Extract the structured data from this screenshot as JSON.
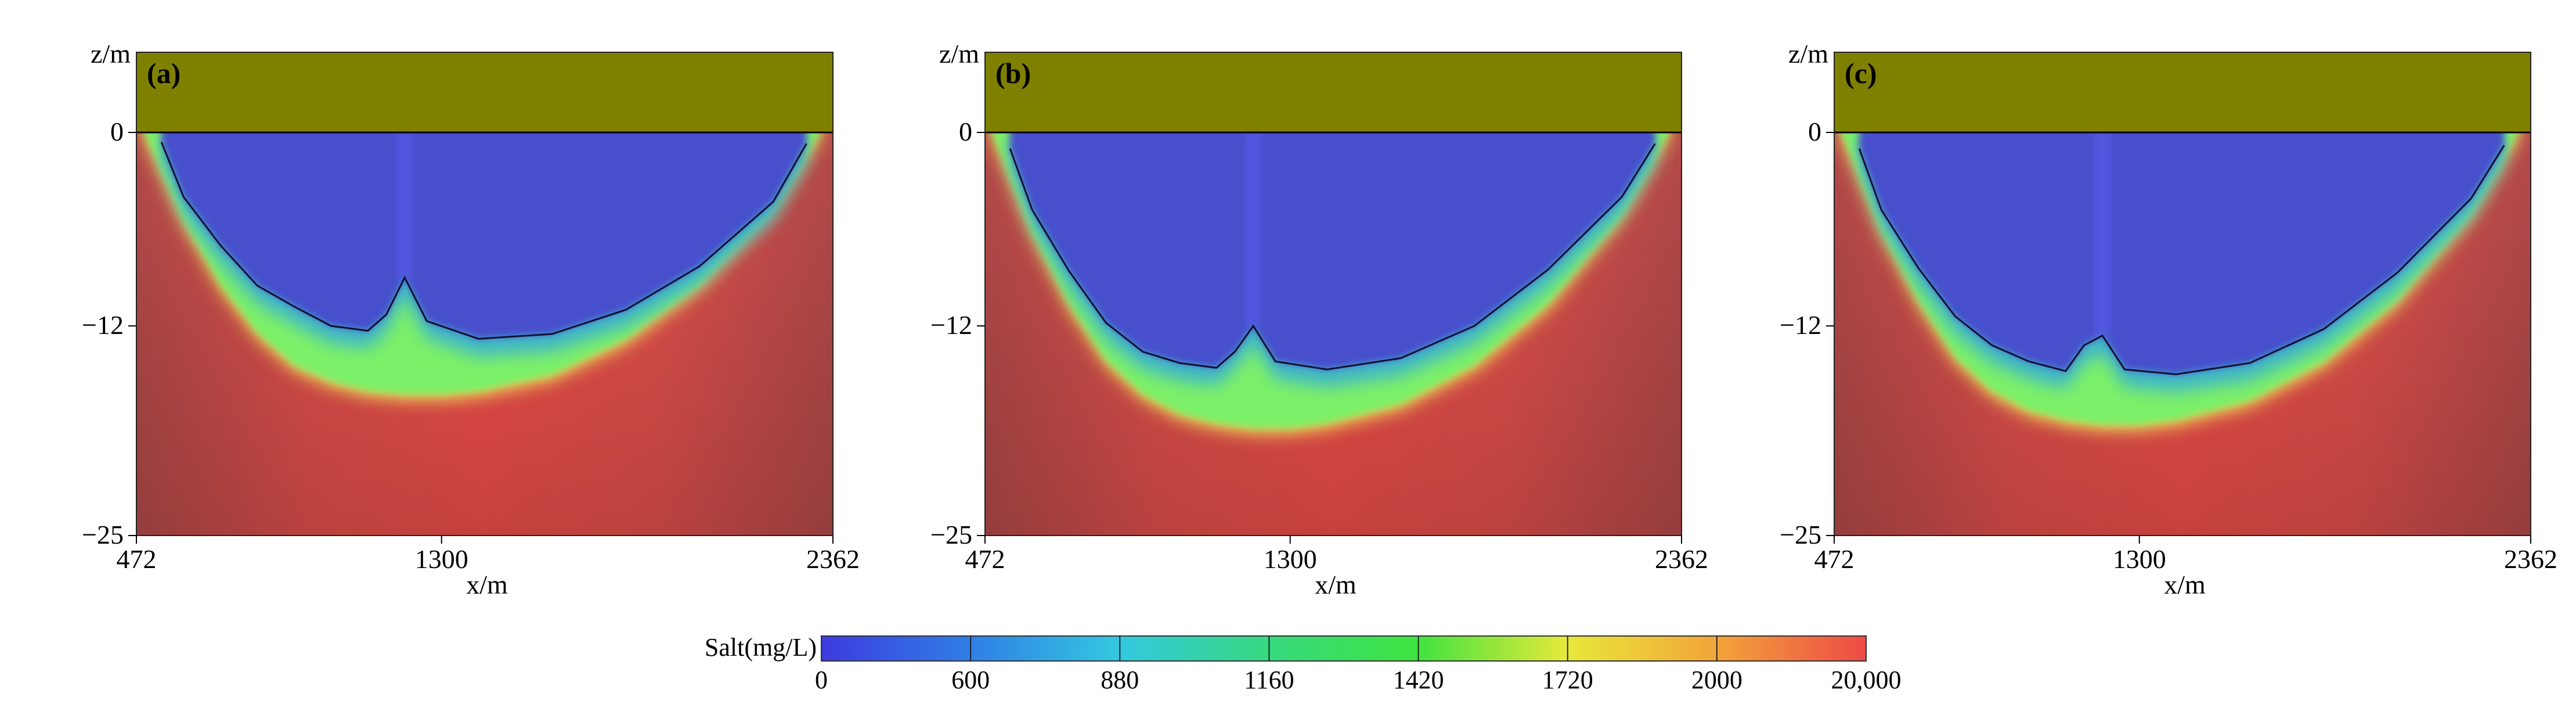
{
  "figure": {
    "panels": [
      {
        "label": "(a)",
        "z_axis_label": "z/m",
        "x_axis_label": "x/m",
        "z_ticks": [
          "0",
          "−12",
          "−25"
        ],
        "x_ticks": [
          "472",
          "1300",
          "2362"
        ]
      },
      {
        "label": "(b)",
        "z_axis_label": "z/m",
        "x_axis_label": "x/m",
        "z_ticks": [
          "0",
          "−12",
          "−25"
        ],
        "x_ticks": [
          "472",
          "1300",
          "2362"
        ]
      },
      {
        "label": "(c)",
        "z_axis_label": "z/m",
        "x_axis_label": "x/m",
        "z_ticks": [
          "0",
          "−12",
          "−25"
        ],
        "x_ticks": [
          "472",
          "1300",
          "2362"
        ]
      }
    ],
    "colorbar": {
      "label": "Salt(mg/L)",
      "ticks": [
        "0",
        "600",
        "880",
        "1160",
        "1420",
        "1720",
        "2000",
        "20,000"
      ],
      "colors": [
        "#3d3ae0",
        "#2f7fe6",
        "#33c9e0",
        "#36d97e",
        "#3fe43f",
        "#e8e83a",
        "#f2a43a",
        "#ee4a46"
      ]
    },
    "colors": {
      "top_layer": "#808000",
      "saline": "#f04b48",
      "fresh": "#4650cc",
      "transition": "#7cf068"
    }
  },
  "chart_data": [
    {
      "type": "heatmap",
      "title": "(a)",
      "xlabel": "x/m",
      "ylabel": "z/m",
      "xlim": [
        472,
        2362
      ],
      "ylim": [
        -25,
        0
      ],
      "colorbar_label": "Salt(mg/L)",
      "colorbar_ticks": [
        0,
        600,
        880,
        1160,
        1420,
        1720,
        2000,
        20000
      ],
      "fresh_lens_boundary": {
        "x": [
          540,
          600,
          700,
          800,
          900,
          1000,
          1100,
          1150,
          1200,
          1260,
          1400,
          1600,
          1800,
          2000,
          2200,
          2290
        ],
        "z": [
          -0.6,
          -4.0,
          -7.0,
          -9.5,
          -10.8,
          -12.0,
          -12.3,
          -11.3,
          -9.0,
          -11.7,
          -12.8,
          -12.5,
          -11.0,
          -8.3,
          -4.3,
          -0.7
        ]
      },
      "mixing_zone_base": {
        "x": [
          490,
          600,
          700,
          800,
          900,
          1000,
          1100,
          1200,
          1300,
          1400,
          1600,
          1800,
          2000,
          2200,
          2330
        ],
        "z": [
          -0.2,
          -5.8,
          -9.8,
          -12.8,
          -14.8,
          -15.8,
          -16.4,
          -16.6,
          -16.6,
          -16.4,
          -15.4,
          -13.2,
          -9.8,
          -5.0,
          -0.3
        ]
      }
    },
    {
      "type": "heatmap",
      "title": "(b)",
      "xlabel": "x/m",
      "ylabel": "z/m",
      "xlim": [
        472,
        2362
      ],
      "ylim": [
        -25,
        0
      ],
      "colorbar_label": "Salt(mg/L)",
      "colorbar_ticks": [
        0,
        600,
        880,
        1160,
        1420,
        1720,
        2000,
        20000
      ],
      "fresh_lens_boundary": {
        "x": [
          540,
          600,
          700,
          800,
          900,
          1000,
          1100,
          1150,
          1200,
          1260,
          1400,
          1600,
          1800,
          2000,
          2200,
          2290
        ],
        "z": [
          -1.0,
          -4.8,
          -8.6,
          -11.8,
          -13.6,
          -14.3,
          -14.6,
          -13.6,
          -12.0,
          -14.2,
          -14.7,
          -14.0,
          -12.0,
          -8.5,
          -4.0,
          -0.7
        ]
      },
      "mixing_zone_base": {
        "x": [
          490,
          600,
          700,
          800,
          900,
          1000,
          1100,
          1200,
          1300,
          1400,
          1600,
          1800,
          2000,
          2200,
          2330
        ],
        "z": [
          -0.3,
          -6.5,
          -11.0,
          -14.5,
          -16.6,
          -17.8,
          -18.4,
          -18.7,
          -18.7,
          -18.4,
          -17.2,
          -14.8,
          -11.0,
          -5.5,
          -0.3
        ]
      }
    },
    {
      "type": "heatmap",
      "title": "(c)",
      "xlabel": "x/m",
      "ylabel": "z/m",
      "xlim": [
        472,
        2362
      ],
      "ylim": [
        -25,
        0
      ],
      "colorbar_label": "Salt(mg/L)",
      "colorbar_ticks": [
        0,
        600,
        880,
        1160,
        1420,
        1720,
        2000,
        20000
      ],
      "fresh_lens_boundary": {
        "x": [
          540,
          600,
          700,
          800,
          900,
          1000,
          1100,
          1150,
          1200,
          1260,
          1400,
          1600,
          1800,
          2000,
          2200,
          2290
        ],
        "z": [
          -1.0,
          -4.8,
          -8.4,
          -11.4,
          -13.2,
          -14.2,
          -14.8,
          -13.2,
          -12.6,
          -14.7,
          -15.0,
          -14.3,
          -12.2,
          -8.7,
          -4.1,
          -0.8
        ]
      },
      "mixing_zone_base": {
        "x": [
          490,
          600,
          700,
          800,
          900,
          1000,
          1100,
          1200,
          1300,
          1400,
          1600,
          1800,
          2000,
          2200,
          2330
        ],
        "z": [
          -0.3,
          -6.4,
          -10.8,
          -14.3,
          -16.4,
          -17.6,
          -18.2,
          -18.5,
          -18.5,
          -18.2,
          -17.0,
          -14.6,
          -10.8,
          -5.4,
          -0.3
        ]
      }
    }
  ]
}
